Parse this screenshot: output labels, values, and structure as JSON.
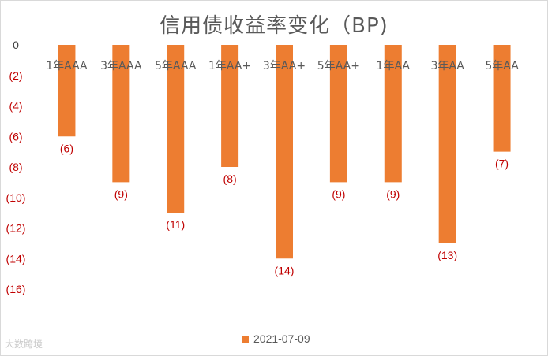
{
  "chart_data": {
    "type": "bar",
    "title": "信用债收益率变化（BP)",
    "categories": [
      "1年AAA",
      "3年AAA",
      "5年AAA",
      "1年AA+",
      "3年AA+",
      "5年AA+",
      "1年AA",
      "3年AA",
      "5年AA"
    ],
    "series": [
      {
        "name": "2021-07-09",
        "values": [
          -6,
          -9,
          -11,
          -8,
          -14,
          -9,
          -9,
          -13,
          -7
        ]
      }
    ],
    "data_labels": [
      "(6)",
      "(9)",
      "(11)",
      "(8)",
      "(14)",
      "(9)",
      "(9)",
      "(13)",
      "(7)"
    ],
    "y_ticks": [
      0,
      -2,
      -4,
      -6,
      -8,
      -10,
      -12,
      -14,
      -16
    ],
    "y_tick_labels": [
      "0",
      "(2)",
      "(4)",
      "(6)",
      "(8)",
      "(10)",
      "(12)",
      "(14)",
      "(16)"
    ],
    "ylim": [
      -16,
      0
    ],
    "grid": false,
    "legend_position": "bottom",
    "colors": {
      "bar": "#ED7D31",
      "data_label": "#C00000",
      "axis_text": "#C00000",
      "category_text": "#595959"
    }
  },
  "watermark": "大数跨境"
}
